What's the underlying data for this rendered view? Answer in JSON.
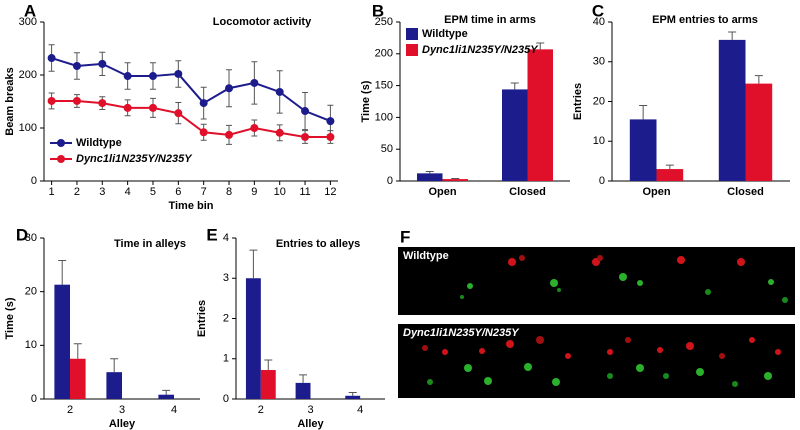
{
  "chart_data": [
    {
      "type": "line",
      "panel": "A",
      "title": "Locomotor activity",
      "xlabel": "Time bin",
      "ylabel": "Beam breaks",
      "x": [
        1,
        2,
        3,
        4,
        5,
        6,
        7,
        8,
        9,
        10,
        11,
        12
      ],
      "xlim": [
        0.7,
        12.3
      ],
      "xticks": [
        1,
        2,
        3,
        4,
        5,
        6,
        7,
        8,
        9,
        10,
        11,
        12
      ],
      "ylim": [
        0,
        300
      ],
      "yticks": [
        0,
        100,
        200,
        300
      ],
      "legend": "lower left",
      "series": [
        {
          "name": "Wildtype",
          "color": "#1c1c8c",
          "values": [
            232,
            217,
            221,
            198,
            198,
            202,
            147,
            175,
            185,
            168,
            132,
            113
          ],
          "errors": [
            25,
            25,
            22,
            25,
            25,
            25,
            30,
            35,
            40,
            40,
            35,
            30
          ]
        },
        {
          "name": "Dync1li1N235Y/N235Y",
          "color": "#e0102a",
          "values": [
            151,
            151,
            147,
            138,
            138,
            128,
            92,
            87,
            100,
            91,
            83,
            83
          ],
          "errors": [
            15,
            12,
            12,
            15,
            18,
            20,
            15,
            18,
            15,
            15,
            12,
            12
          ]
        }
      ]
    },
    {
      "type": "bar",
      "panel": "B",
      "title": "EPM time in arms",
      "ylabel": "Time (s)",
      "categories": [
        "Open",
        "Closed"
      ],
      "ylim": [
        0,
        250
      ],
      "yticks": [
        0,
        50,
        100,
        150,
        200,
        250
      ],
      "legend": "upper left",
      "series": [
        {
          "name": "Wildtype",
          "color": "#1c1c8c",
          "values": [
            12,
            144
          ],
          "errors": [
            3,
            10
          ]
        },
        {
          "name": "Dync1li1N235Y/N235Y",
          "color": "#e0102a",
          "values": [
            3,
            207
          ],
          "errors": [
            1,
            10
          ]
        }
      ]
    },
    {
      "type": "bar",
      "panel": "C",
      "title": "EPM entries to arms",
      "ylabel": "Entries",
      "categories": [
        "Open",
        "Closed"
      ],
      "ylim": [
        0,
        40
      ],
      "yticks": [
        0,
        10,
        20,
        30,
        40
      ],
      "series": [
        {
          "color": "#1c1c8c",
          "values": [
            15.5,
            35.5
          ],
          "errors": [
            3.5,
            2
          ]
        },
        {
          "color": "#e0102a",
          "values": [
            3,
            24.5
          ],
          "errors": [
            1,
            2
          ]
        }
      ]
    },
    {
      "type": "bar",
      "panel": "D",
      "title": "Time in alleys",
      "xlabel": "Alley",
      "ylabel": "Time (s)",
      "categories": [
        "2",
        "3",
        "4"
      ],
      "ylim": [
        0,
        30
      ],
      "yticks": [
        0,
        10,
        20,
        30
      ],
      "series": [
        {
          "color": "#1c1c8c",
          "values": [
            21.3,
            5,
            0.8
          ],
          "errors": [
            4.5,
            2.5,
            0.8
          ]
        },
        {
          "color": "#e0102a",
          "values": [
            7.5,
            0,
            0
          ],
          "errors": [
            2.8,
            0,
            0
          ]
        }
      ]
    },
    {
      "type": "bar",
      "panel": "E",
      "title": "Entries to alleys",
      "xlabel": "Alley",
      "ylabel": "Entries",
      "categories": [
        "2",
        "3",
        "4"
      ],
      "ylim": [
        0,
        4
      ],
      "yticks": [
        0,
        1,
        2,
        3,
        4
      ],
      "series": [
        {
          "color": "#1c1c8c",
          "values": [
            3.0,
            0.4,
            0.08
          ],
          "errors": [
            0.7,
            0.2,
            0.08
          ]
        },
        {
          "color": "#e0102a",
          "values": [
            0.72,
            0,
            0
          ],
          "errors": [
            0.25,
            0,
            0
          ]
        }
      ]
    }
  ],
  "panel_f": {
    "panel": "F",
    "labels": [
      "Wildtype",
      "Dync1li1N235Y/N235Y"
    ]
  }
}
